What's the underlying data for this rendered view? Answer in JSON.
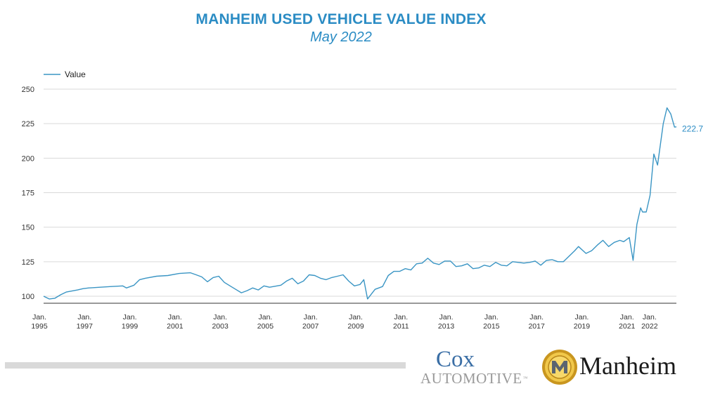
{
  "header": {
    "title": "MANHEIM USED VEHICLE VALUE INDEX",
    "subtitle": "May 2022"
  },
  "colors": {
    "accent": "#2b8cc4",
    "line": "#3a95c4",
    "grid": "#d9d9d9",
    "text": "#333333",
    "cox": "#3a6ea5",
    "cox_sub": "#9a9a9a",
    "manheim_gold": "#e2b33b"
  },
  "logos": {
    "cox_word": "Cox",
    "cox_sub": "AUTOMOTIVE",
    "cox_tm": "™",
    "manheim": "Manheim"
  },
  "chart_data": {
    "type": "line",
    "title": "MANHEIM USED VEHICLE VALUE INDEX",
    "subtitle": "May 2022",
    "xlabel": "",
    "ylabel": "",
    "legend_position": "top-left",
    "grid": "horizontal",
    "ylim": [
      95,
      250
    ],
    "yticks": [
      100,
      125,
      150,
      175,
      200,
      225,
      250
    ],
    "xlim": [
      "1995-01",
      "2022-05"
    ],
    "xticks": [
      {
        "date": "1995-01",
        "line1": "Jan.",
        "line2": "1995"
      },
      {
        "date": "1997-01",
        "line1": "Jan.",
        "line2": "1997"
      },
      {
        "date": "1999-01",
        "line1": "Jan.",
        "line2": "1999"
      },
      {
        "date": "2001-01",
        "line1": "Jan.",
        "line2": "2001"
      },
      {
        "date": "2003-01",
        "line1": "Jan.",
        "line2": "2003"
      },
      {
        "date": "2005-01",
        "line1": "Jan.",
        "line2": "2005"
      },
      {
        "date": "2007-01",
        "line1": "Jan.",
        "line2": "2007"
      },
      {
        "date": "2009-01",
        "line1": "Jan.",
        "line2": "2009"
      },
      {
        "date": "2011-01",
        "line1": "Jan.",
        "line2": "2011"
      },
      {
        "date": "2013-01",
        "line1": "Jan.",
        "line2": "2013"
      },
      {
        "date": "2015-01",
        "line1": "Jan.",
        "line2": "2015"
      },
      {
        "date": "2017-01",
        "line1": "Jan.",
        "line2": "2017"
      },
      {
        "date": "2019-01",
        "line1": "Jan.",
        "line2": "2019"
      },
      {
        "date": "2021-01",
        "line1": "Jan.",
        "line2": "2021"
      },
      {
        "date": "2022-01",
        "line1": "Jan.",
        "line2": "2022"
      }
    ],
    "series": [
      {
        "name": "Value",
        "end_label": "222.7",
        "points": [
          [
            "1995-01",
            100
          ],
          [
            "1995-04",
            98
          ],
          [
            "1995-07",
            98.5
          ],
          [
            "1995-10",
            101
          ],
          [
            "1996-01",
            103
          ],
          [
            "1996-07",
            104.5
          ],
          [
            "1996-10",
            105.5
          ],
          [
            "1997-01",
            106
          ],
          [
            "1997-07",
            106.5
          ],
          [
            "1998-01",
            107
          ],
          [
            "1998-07",
            107.5
          ],
          [
            "1998-09",
            106
          ],
          [
            "1999-01",
            108
          ],
          [
            "1999-04",
            112
          ],
          [
            "1999-07",
            113
          ],
          [
            "2000-01",
            114.5
          ],
          [
            "2000-07",
            115
          ],
          [
            "2001-01",
            116.5
          ],
          [
            "2001-07",
            117
          ],
          [
            "2001-10",
            115.5
          ],
          [
            "2002-01",
            114
          ],
          [
            "2002-04",
            110.5
          ],
          [
            "2002-07",
            113.5
          ],
          [
            "2002-10",
            114.5
          ],
          [
            "2003-01",
            110
          ],
          [
            "2003-04",
            107.5
          ],
          [
            "2003-07",
            105
          ],
          [
            "2003-10",
            102.5
          ],
          [
            "2004-01",
            104
          ],
          [
            "2004-04",
            106
          ],
          [
            "2004-07",
            104.5
          ],
          [
            "2004-10",
            107.5
          ],
          [
            "2005-01",
            106.5
          ],
          [
            "2005-07",
            108
          ],
          [
            "2005-10",
            111
          ],
          [
            "2006-01",
            113
          ],
          [
            "2006-04",
            109
          ],
          [
            "2006-07",
            111
          ],
          [
            "2006-10",
            115.5
          ],
          [
            "2007-01",
            115
          ],
          [
            "2007-04",
            113
          ],
          [
            "2007-07",
            112
          ],
          [
            "2007-10",
            113.5
          ],
          [
            "2008-01",
            114.5
          ],
          [
            "2008-04",
            115.5
          ],
          [
            "2008-07",
            111
          ],
          [
            "2008-10",
            107.5
          ],
          [
            "2009-01",
            108.5
          ],
          [
            "2009-03",
            112
          ],
          [
            "2009-05",
            98
          ],
          [
            "2009-09",
            105
          ],
          [
            "2010-01",
            107
          ],
          [
            "2010-04",
            115
          ],
          [
            "2010-07",
            118
          ],
          [
            "2010-10",
            118
          ],
          [
            "2011-01",
            120
          ],
          [
            "2011-04",
            119
          ],
          [
            "2011-07",
            123.5
          ],
          [
            "2011-10",
            124
          ],
          [
            "2012-01",
            127.5
          ],
          [
            "2012-04",
            124
          ],
          [
            "2012-07",
            123
          ],
          [
            "2012-10",
            125.5
          ],
          [
            "2013-01",
            125.5
          ],
          [
            "2013-04",
            121.5
          ],
          [
            "2013-07",
            122
          ],
          [
            "2013-10",
            123.5
          ],
          [
            "2014-01",
            120
          ],
          [
            "2014-04",
            120.5
          ],
          [
            "2014-07",
            122.5
          ],
          [
            "2014-10",
            121.5
          ],
          [
            "2015-01",
            124.5
          ],
          [
            "2015-04",
            122.5
          ],
          [
            "2015-07",
            122
          ],
          [
            "2015-10",
            125
          ],
          [
            "2016-01",
            124.5
          ],
          [
            "2016-04",
            124
          ],
          [
            "2016-07",
            124.5
          ],
          [
            "2016-10",
            125.5
          ],
          [
            "2017-01",
            122.5
          ],
          [
            "2017-04",
            126
          ],
          [
            "2017-07",
            126.5
          ],
          [
            "2017-10",
            125
          ],
          [
            "2018-01",
            125
          ],
          [
            "2018-04",
            129
          ],
          [
            "2018-07",
            133
          ],
          [
            "2018-09",
            136
          ],
          [
            "2019-01",
            131
          ],
          [
            "2019-04",
            133
          ],
          [
            "2019-07",
            137
          ],
          [
            "2019-10",
            140.5
          ],
          [
            "2020-01",
            136
          ],
          [
            "2020-04",
            139
          ],
          [
            "2020-07",
            140.5
          ],
          [
            "2020-09",
            139.5
          ],
          [
            "2020-12",
            142.5
          ],
          [
            "2021-02",
            126
          ],
          [
            "2021-04",
            152
          ],
          [
            "2021-06",
            164
          ],
          [
            "2021-07",
            161
          ],
          [
            "2021-09",
            161
          ],
          [
            "2021-11",
            173
          ],
          [
            "2022-01",
            203
          ],
          [
            "2022-03",
            195
          ],
          [
            "2022-04",
            205
          ],
          [
            "2022-06",
            225
          ],
          [
            "2022-08",
            236.5
          ],
          [
            "2022-10",
            232
          ],
          [
            "2022-12",
            222.5
          ],
          [
            "2023-01",
            222.7
          ]
        ]
      }
    ]
  }
}
